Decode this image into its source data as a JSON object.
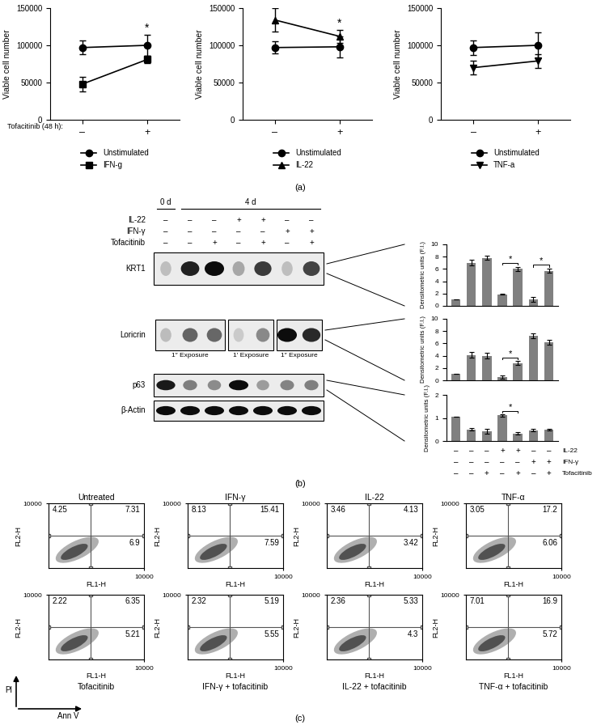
{
  "panel_labels": [
    "(a)",
    "(b)",
    "(c)"
  ],
  "chart_data": [
    {
      "type": "line",
      "categories": [
        "–",
        "+"
      ],
      "x_label": "Tofacitinib (48 h):",
      "y_label": "Viable cell number",
      "ylim": [
        0,
        150000
      ],
      "yticks": [
        0,
        50000,
        100000,
        150000
      ],
      "legend": "upper center",
      "series": [
        {
          "name": "Unstimulated",
          "color": "#000000",
          "marker": "circle",
          "values": [
            97000,
            100000
          ],
          "errors": [
            9000,
            14000
          ]
        },
        {
          "name": "IFN-g",
          "color": "#000000",
          "marker": "square",
          "values": [
            48000,
            81000
          ],
          "errors": [
            10000,
            5000
          ]
        }
      ],
      "annotations": [
        {
          "text": "*",
          "category": "+"
        }
      ]
    },
    {
      "type": "line",
      "categories": [
        "–",
        "+"
      ],
      "y_label": "Viable cell number",
      "ylim": [
        0,
        150000
      ],
      "yticks": [
        0,
        50000,
        100000,
        150000
      ],
      "legend": "upper center",
      "series": [
        {
          "name": "Unstimulated",
          "color": "#000000",
          "marker": "circle",
          "values": [
            97000,
            98000
          ],
          "errors": [
            8000,
            14000
          ]
        },
        {
          "name": "IL-22",
          "color": "#000000",
          "marker": "triangle",
          "values": [
            134000,
            112000
          ],
          "errors": [
            16000,
            9000
          ]
        }
      ],
      "annotations": [
        {
          "text": "*",
          "category": "+"
        }
      ]
    },
    {
      "type": "line",
      "categories": [
        "–",
        "+"
      ],
      "y_label": "Viable cell number",
      "ylim": [
        0,
        150000
      ],
      "yticks": [
        0,
        50000,
        100000,
        150000
      ],
      "legend": "upper center",
      "series": [
        {
          "name": "Unstimulated",
          "color": "#000000",
          "marker": "circle",
          "values": [
            97000,
            100000
          ],
          "errors": [
            10000,
            17000
          ]
        },
        {
          "name": "TNF-a",
          "color": "#000000",
          "marker": "triangle_down",
          "values": [
            70000,
            79000
          ],
          "errors": [
            9000,
            9000
          ]
        }
      ],
      "annotations": []
    },
    {
      "type": "bar",
      "categories": [
        null,
        null,
        null,
        null,
        null,
        null,
        null
      ],
      "tick_labels": "y",
      "values": [
        1.0,
        7.0,
        7.8,
        1.9,
        6.0,
        1.0,
        5.7
      ],
      "errors": [
        0,
        0.45,
        0.3,
        0.1,
        0.35,
        0.4,
        0.35
      ],
      "color": "#808080",
      "y_label": "Densitometric units (F.I.)",
      "ylim": [
        0,
        10
      ],
      "yticks": [
        0,
        2,
        4,
        6,
        8,
        10
      ],
      "significance": [
        {
          "from": 3,
          "to": 4,
          "text": "*"
        },
        {
          "from": 5,
          "to": 6,
          "text": "*"
        }
      ]
    },
    {
      "type": "bar",
      "categories": [
        null,
        null,
        null,
        null,
        null,
        null,
        null
      ],
      "tick_labels": "y",
      "values": [
        1.0,
        4.1,
        4.0,
        0.5,
        2.8,
        7.2,
        6.2
      ],
      "errors": [
        0,
        0.45,
        0.45,
        0.25,
        0.3,
        0.4,
        0.35
      ],
      "color": "#808080",
      "y_label": "Densitometric units (F.I.)",
      "ylim": [
        0,
        10
      ],
      "yticks": [
        0,
        2,
        4,
        6,
        8,
        10
      ],
      "significance": [
        {
          "from": 3,
          "to": 4,
          "text": "*"
        }
      ]
    },
    {
      "type": "bar",
      "categories": [
        null,
        null,
        null,
        null,
        null,
        null,
        null
      ],
      "tick_labels": "y",
      "values": [
        1.05,
        0.5,
        0.42,
        1.12,
        0.33,
        0.47,
        0.49
      ],
      "errors": [
        0,
        0.06,
        0.09,
        0.05,
        0.05,
        0.04,
        0.04
      ],
      "color": "#808080",
      "y_label": "Densitometric units (F.I.)",
      "ylim": [
        0,
        2
      ],
      "yticks": [
        0,
        1,
        2
      ],
      "significance": [
        {
          "from": 3,
          "to": 4,
          "text": "*"
        }
      ]
    },
    {
      "type": "scatter",
      "title": "Untreated",
      "x_label": "FL1-H",
      "y_label": "FL2-H",
      "log": true,
      "xlim": [
        1,
        10000
      ],
      "ylim": [
        1,
        10000
      ],
      "xticks": [
        10000
      ],
      "yticks": [
        10000
      ],
      "gate": {
        "x": 60,
        "y": 100
      },
      "quadrants": {
        "upper_left": 4.25,
        "upper_right": 7.31,
        "lower_right": 6.9
      }
    },
    {
      "type": "scatter",
      "title": "IFN-γ",
      "x_label": "FL1-H",
      "y_label": "FL2-H",
      "log": true,
      "xlim": [
        1,
        10000
      ],
      "ylim": [
        1,
        10000
      ],
      "xticks": [
        10000
      ],
      "yticks": [
        10000
      ],
      "gate": {
        "x": 60,
        "y": 100
      },
      "quadrants": {
        "upper_left": 8.13,
        "upper_right": 15.41,
        "lower_right": 7.59
      }
    },
    {
      "type": "scatter",
      "title": "IL-22",
      "x_label": "FL1-H",
      "y_label": "FL2-H",
      "log": true,
      "xlim": [
        1,
        10000
      ],
      "ylim": [
        1,
        10000
      ],
      "xticks": [
        10000
      ],
      "yticks": [
        10000
      ],
      "gate": {
        "x": 60,
        "y": 100
      },
      "quadrants": {
        "upper_left": 3.46,
        "upper_right": 4.13,
        "lower_right": 3.42
      }
    },
    {
      "type": "scatter",
      "title": "TNF-α",
      "x_label": "FL1-H",
      "y_label": "FL2-H",
      "log": true,
      "xlim": [
        1,
        10000
      ],
      "ylim": [
        1,
        10000
      ],
      "xticks": [
        10000
      ],
      "yticks": [
        10000
      ],
      "gate": {
        "x": 60,
        "y": 100
      },
      "quadrants": {
        "upper_left": 3.05,
        "upper_right": 17.2,
        "lower_right": 6.06
      }
    },
    {
      "type": "scatter",
      "title": "Tofacitinib",
      "x_label": "FL1-H",
      "y_label": "FL2-H",
      "log": true,
      "xlim": [
        1,
        10000
      ],
      "ylim": [
        1,
        10000
      ],
      "xticks": [
        10000
      ],
      "yticks": [
        10000
      ],
      "gate": {
        "x": 60,
        "y": 100
      },
      "quadrants": {
        "upper_left": 2.22,
        "upper_right": 6.35,
        "lower_right": 5.21
      }
    },
    {
      "type": "scatter",
      "title": "IFN-γ + tofacitinib",
      "x_label": "FL1-H",
      "y_label": "FL2-H",
      "log": true,
      "xlim": [
        1,
        10000
      ],
      "ylim": [
        1,
        10000
      ],
      "xticks": [
        10000
      ],
      "yticks": [
        10000
      ],
      "gate": {
        "x": 60,
        "y": 100
      },
      "quadrants": {
        "upper_left": 2.32,
        "upper_right": 5.19,
        "lower_right": 5.55
      }
    },
    {
      "type": "scatter",
      "title": "IL-22 + tofacitinib",
      "x_label": "FL1-H",
      "y_label": "FL2-H",
      "log": true,
      "xlim": [
        1,
        10000
      ],
      "ylim": [
        1,
        10000
      ],
      "xticks": [
        10000
      ],
      "yticks": [
        10000
      ],
      "gate": {
        "x": 60,
        "y": 100
      },
      "quadrants": {
        "upper_left": 2.36,
        "upper_right": 5.33,
        "lower_right": 4.3
      }
    },
    {
      "type": "scatter",
      "title": "TNF-α + tofacitinib",
      "x_label": "FL1-H",
      "y_label": "FL2-H",
      "log": true,
      "xlim": [
        1,
        10000
      ],
      "ylim": [
        1,
        10000
      ],
      "xticks": [
        10000
      ],
      "yticks": [
        10000
      ],
      "gate": {
        "x": 60,
        "y": 100
      },
      "quadrants": {
        "upper_left": 7.01,
        "upper_right": 16.9,
        "lower_right": 5.72
      }
    }
  ],
  "blot": {
    "days": [
      {
        "label": "0 d",
        "lanes": [
          0
        ]
      },
      {
        "label": "4 d",
        "lanes": [
          1,
          2,
          3,
          4,
          5,
          6
        ]
      }
    ],
    "conditions": [
      {
        "name": "IL-22",
        "values": [
          "–",
          "–",
          "–",
          "+",
          "+",
          "–",
          "–"
        ]
      },
      {
        "name": "IFN-γ",
        "values": [
          "–",
          "–",
          "–",
          "–",
          "–",
          "+",
          "+"
        ]
      },
      {
        "name": "Tofacitinib",
        "values": [
          "–",
          "–",
          "+",
          "–",
          "+",
          "–",
          "+"
        ]
      }
    ],
    "rows": [
      {
        "name": "KRT1"
      },
      {
        "name": "Loricrin",
        "groups": [
          {
            "lanes": [
              0,
              1,
              2
            ],
            "label": "1″ Exposure"
          },
          {
            "lanes": [
              3,
              4
            ],
            "label": "1′ Exposure"
          },
          {
            "lanes": [
              5,
              6
            ],
            "label": "1″ Exposure"
          }
        ]
      },
      {
        "name": "p63"
      },
      {
        "name": "β-Actin"
      }
    ]
  },
  "flow_axes": {
    "x": "Ann V",
    "y": "PI"
  }
}
